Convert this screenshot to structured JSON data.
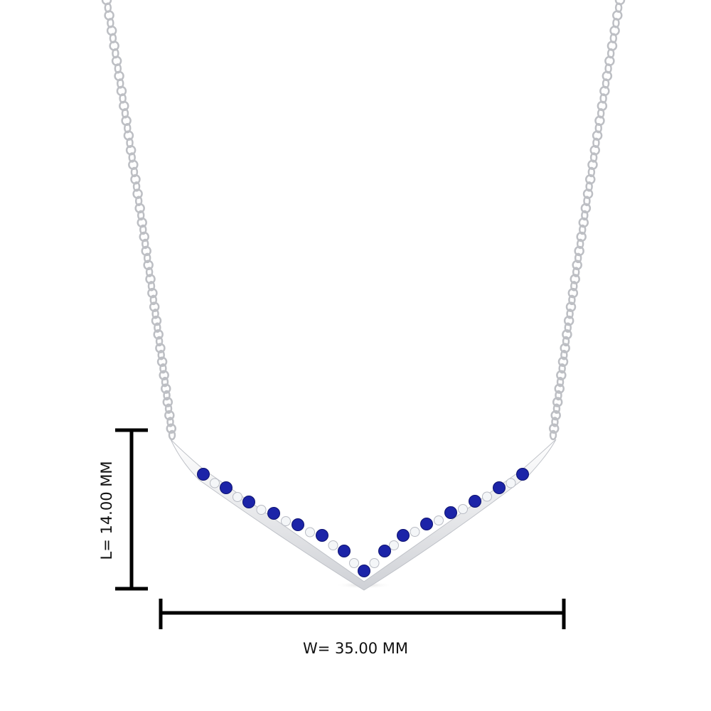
{
  "product": {
    "description_visible": "",
    "metal_color": "#e8e8ea",
    "sapphire_color": "#1c24a8",
    "diamond_color": "#f4f6f8"
  },
  "dimensions": {
    "length_label": "L= 14.00 MM",
    "width_label": "W= 35.00 MM",
    "marker_color": "#000000"
  }
}
